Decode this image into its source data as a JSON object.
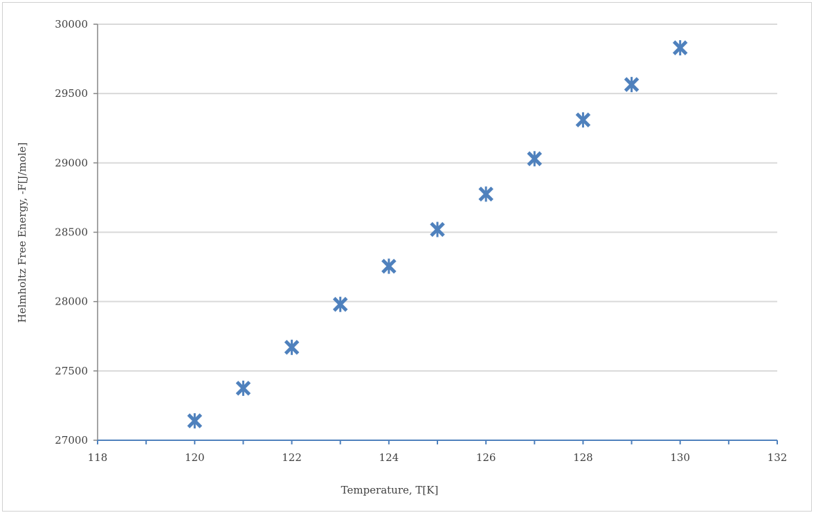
{
  "chart_data": {
    "type": "scatter",
    "title": "",
    "xlabel": "Temperature, T[K]",
    "ylabel": "Helmholtz Free Energy, -F[J/mole]",
    "xlim": [
      118,
      132
    ],
    "ylim": [
      27000,
      30000
    ],
    "x_ticks": [
      118,
      120,
      122,
      124,
      126,
      128,
      130,
      132
    ],
    "y_ticks": [
      27000,
      27500,
      28000,
      28500,
      29000,
      29500,
      30000
    ],
    "x_minor_step": 1,
    "grid": "horizontal major",
    "legend": "none",
    "marker": "x",
    "marker_color": "#4f81bd",
    "series": [
      {
        "x": [
          120,
          121,
          122,
          123,
          124,
          125,
          126,
          127,
          128,
          129,
          130
        ],
        "y": [
          27140,
          27375,
          27670,
          27980,
          28255,
          28520,
          28775,
          29030,
          29310,
          29565,
          29830
        ]
      }
    ]
  }
}
